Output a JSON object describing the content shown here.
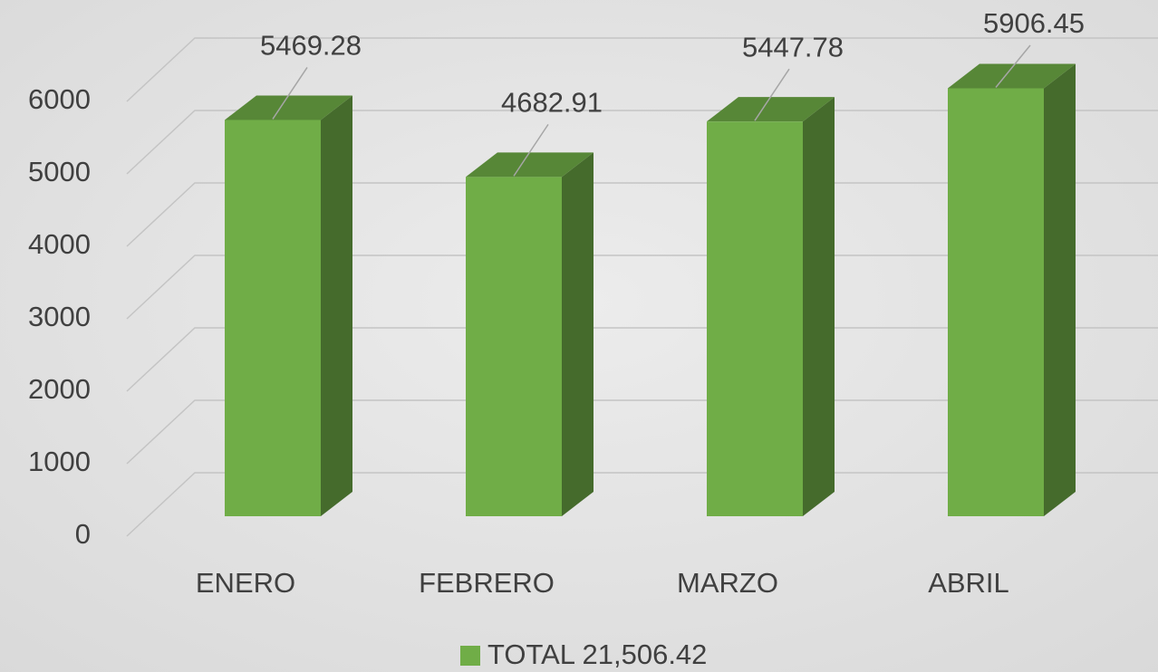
{
  "chart_data": {
    "type": "bar3d",
    "categories": [
      "ENERO",
      "FEBRERO",
      "MARZO",
      "ABRIL"
    ],
    "series": [
      {
        "name": "TOTAL 21,506.42",
        "color": "#70ad47",
        "values": [
          5469.28,
          4682.91,
          5447.78,
          5906.45
        ]
      }
    ],
    "ylim": [
      0,
      6000
    ],
    "yticks": [
      0,
      1000,
      2000,
      3000,
      4000,
      5000,
      6000
    ],
    "grid": true,
    "legend": "bottom"
  }
}
